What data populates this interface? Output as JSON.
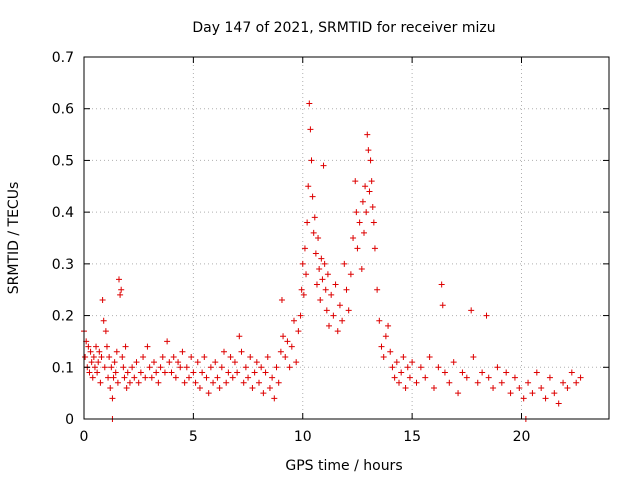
{
  "chart_data": {
    "type": "scatter",
    "title": "Day 147 of 2021, SRMTID for receiver mizu",
    "xlabel": "GPS time / hours",
    "ylabel": "SRMTID / TECUs",
    "xlim": [
      0,
      24
    ],
    "ylim": [
      0,
      0.7
    ],
    "xticks": [
      0,
      5,
      10,
      15,
      20
    ],
    "xtick_labels": [
      "0",
      "5",
      "10",
      "15",
      "20"
    ],
    "yticks": [
      0,
      0.1,
      0.2,
      0.3,
      0.4,
      0.5,
      0.6,
      0.7
    ],
    "ytick_labels": [
      "0",
      "0.1",
      "0.2",
      "0.3",
      "0.4",
      "0.5",
      "0.6",
      "0.7"
    ],
    "grid": true,
    "marker": "+",
    "series": [
      {
        "name": "SRMTID",
        "color": "#dd0000",
        "points": [
          [
            0.0,
            0.17
          ],
          [
            0.05,
            0.12
          ],
          [
            0.1,
            0.15
          ],
          [
            0.15,
            0.1
          ],
          [
            0.2,
            0.14
          ],
          [
            0.25,
            0.09
          ],
          [
            0.3,
            0.13
          ],
          [
            0.35,
            0.11
          ],
          [
            0.4,
            0.08
          ],
          [
            0.45,
            0.12
          ],
          [
            0.5,
            0.1
          ],
          [
            0.55,
            0.14
          ],
          [
            0.6,
            0.09
          ],
          [
            0.65,
            0.11
          ],
          [
            0.7,
            0.13
          ],
          [
            0.75,
            0.07
          ],
          [
            0.8,
            0.12
          ],
          [
            0.85,
            0.23
          ],
          [
            0.9,
            0.19
          ],
          [
            0.95,
            0.1
          ],
          [
            1.0,
            0.17
          ],
          [
            1.05,
            0.14
          ],
          [
            1.1,
            0.08
          ],
          [
            1.15,
            0.12
          ],
          [
            1.2,
            0.06
          ],
          [
            1.25,
            0.1
          ],
          [
            1.3,
            0.04
          ],
          [
            1.35,
            0.08
          ],
          [
            1.4,
            0.11
          ],
          [
            1.45,
            0.09
          ],
          [
            1.5,
            0.13
          ],
          [
            1.55,
            0.07
          ],
          [
            1.6,
            0.27
          ],
          [
            1.65,
            0.24
          ],
          [
            1.7,
            0.25
          ],
          [
            1.75,
            0.12
          ],
          [
            1.8,
            0.1
          ],
          [
            1.85,
            0.08
          ],
          [
            1.9,
            0.14
          ],
          [
            1.95,
            0.06
          ],
          [
            2.0,
            0.09
          ],
          [
            2.1,
            0.07
          ],
          [
            2.2,
            0.1
          ],
          [
            2.3,
            0.08
          ],
          [
            2.4,
            0.11
          ],
          [
            2.5,
            0.07
          ],
          [
            2.6,
            0.09
          ],
          [
            2.7,
            0.12
          ],
          [
            2.8,
            0.08
          ],
          [
            2.9,
            0.14
          ],
          [
            3.0,
            0.1
          ],
          [
            3.1,
            0.08
          ],
          [
            3.2,
            0.11
          ],
          [
            3.3,
            0.09
          ],
          [
            3.4,
            0.07
          ],
          [
            3.5,
            0.1
          ],
          [
            3.6,
            0.12
          ],
          [
            3.7,
            0.09
          ],
          [
            3.8,
            0.15
          ],
          [
            3.9,
            0.11
          ],
          [
            4.0,
            0.09
          ],
          [
            4.1,
            0.12
          ],
          [
            4.2,
            0.08
          ],
          [
            4.3,
            0.11
          ],
          [
            4.4,
            0.1
          ],
          [
            4.5,
            0.13
          ],
          [
            4.6,
            0.07
          ],
          [
            4.7,
            0.1
          ],
          [
            4.8,
            0.08
          ],
          [
            4.9,
            0.12
          ],
          [
            5.0,
            0.09
          ],
          [
            5.1,
            0.07
          ],
          [
            5.2,
            0.11
          ],
          [
            5.3,
            0.06
          ],
          [
            5.4,
            0.09
          ],
          [
            5.5,
            0.12
          ],
          [
            5.6,
            0.08
          ],
          [
            5.7,
            0.05
          ],
          [
            5.8,
            0.1
          ],
          [
            5.9,
            0.07
          ],
          [
            6.0,
            0.11
          ],
          [
            6.1,
            0.08
          ],
          [
            6.2,
            0.06
          ],
          [
            6.3,
            0.1
          ],
          [
            6.4,
            0.13
          ],
          [
            6.5,
            0.07
          ],
          [
            6.6,
            0.09
          ],
          [
            6.7,
            0.12
          ],
          [
            6.8,
            0.08
          ],
          [
            6.9,
            0.11
          ],
          [
            7.0,
            0.09
          ],
          [
            7.1,
            0.16
          ],
          [
            7.2,
            0.13
          ],
          [
            7.3,
            0.07
          ],
          [
            7.4,
            0.1
          ],
          [
            7.5,
            0.08
          ],
          [
            7.6,
            0.12
          ],
          [
            7.7,
            0.06
          ],
          [
            7.8,
            0.09
          ],
          [
            7.9,
            0.11
          ],
          [
            8.0,
            0.07
          ],
          [
            8.1,
            0.1
          ],
          [
            8.2,
            0.05
          ],
          [
            8.3,
            0.09
          ],
          [
            8.4,
            0.12
          ],
          [
            8.5,
            0.06
          ],
          [
            8.6,
            0.08
          ],
          [
            8.7,
            0.04
          ],
          [
            8.8,
            0.1
          ],
          [
            8.9,
            0.07
          ],
          [
            9.0,
            0.13
          ],
          [
            9.05,
            0.23
          ],
          [
            9.1,
            0.16
          ],
          [
            9.2,
            0.12
          ],
          [
            9.3,
            0.15
          ],
          [
            9.4,
            0.1
          ],
          [
            9.5,
            0.14
          ],
          [
            9.6,
            0.19
          ],
          [
            9.7,
            0.11
          ],
          [
            9.8,
            0.17
          ],
          [
            9.9,
            0.2
          ],
          [
            9.95,
            0.25
          ],
          [
            10.0,
            0.3
          ],
          [
            10.05,
            0.24
          ],
          [
            10.1,
            0.33
          ],
          [
            10.15,
            0.28
          ],
          [
            10.2,
            0.38
          ],
          [
            10.25,
            0.45
          ],
          [
            10.3,
            0.61
          ],
          [
            10.35,
            0.56
          ],
          [
            10.4,
            0.5
          ],
          [
            10.45,
            0.43
          ],
          [
            10.5,
            0.36
          ],
          [
            10.55,
            0.39
          ],
          [
            10.6,
            0.32
          ],
          [
            10.65,
            0.26
          ],
          [
            10.7,
            0.35
          ],
          [
            10.75,
            0.29
          ],
          [
            10.8,
            0.23
          ],
          [
            10.85,
            0.31
          ],
          [
            10.9,
            0.27
          ],
          [
            10.95,
            0.49
          ],
          [
            11.0,
            0.3
          ],
          [
            11.05,
            0.25
          ],
          [
            11.1,
            0.21
          ],
          [
            11.15,
            0.28
          ],
          [
            11.2,
            0.18
          ],
          [
            11.3,
            0.24
          ],
          [
            11.4,
            0.2
          ],
          [
            11.5,
            0.26
          ],
          [
            11.6,
            0.17
          ],
          [
            11.7,
            0.22
          ],
          [
            11.8,
            0.19
          ],
          [
            11.9,
            0.3
          ],
          [
            12.0,
            0.25
          ],
          [
            12.1,
            0.21
          ],
          [
            12.2,
            0.28
          ],
          [
            12.3,
            0.35
          ],
          [
            12.4,
            0.46
          ],
          [
            12.45,
            0.4
          ],
          [
            12.5,
            0.33
          ],
          [
            12.6,
            0.38
          ],
          [
            12.7,
            0.29
          ],
          [
            12.75,
            0.42
          ],
          [
            12.8,
            0.36
          ],
          [
            12.85,
            0.45
          ],
          [
            12.9,
            0.4
          ],
          [
            12.95,
            0.55
          ],
          [
            13.0,
            0.52
          ],
          [
            13.05,
            0.44
          ],
          [
            13.1,
            0.5
          ],
          [
            13.15,
            0.46
          ],
          [
            13.2,
            0.41
          ],
          [
            13.25,
            0.38
          ],
          [
            13.3,
            0.33
          ],
          [
            13.4,
            0.25
          ],
          [
            13.5,
            0.19
          ],
          [
            13.6,
            0.14
          ],
          [
            13.7,
            0.12
          ],
          [
            13.8,
            0.16
          ],
          [
            13.9,
            0.18
          ],
          [
            14.0,
            0.13
          ],
          [
            14.1,
            0.1
          ],
          [
            14.2,
            0.08
          ],
          [
            14.3,
            0.11
          ],
          [
            14.4,
            0.07
          ],
          [
            14.5,
            0.09
          ],
          [
            14.6,
            0.12
          ],
          [
            14.7,
            0.06
          ],
          [
            14.8,
            0.1
          ],
          [
            14.9,
            0.08
          ],
          [
            15.0,
            0.11
          ],
          [
            15.2,
            0.07
          ],
          [
            15.4,
            0.1
          ],
          [
            15.6,
            0.08
          ],
          [
            15.8,
            0.12
          ],
          [
            16.0,
            0.06
          ],
          [
            16.2,
            0.1
          ],
          [
            16.35,
            0.26
          ],
          [
            16.4,
            0.22
          ],
          [
            16.5,
            0.09
          ],
          [
            16.7,
            0.07
          ],
          [
            16.9,
            0.11
          ],
          [
            17.1,
            0.05
          ],
          [
            17.3,
            0.09
          ],
          [
            17.5,
            0.08
          ],
          [
            17.7,
            0.21
          ],
          [
            17.8,
            0.12
          ],
          [
            18.0,
            0.07
          ],
          [
            18.2,
            0.09
          ],
          [
            18.4,
            0.2
          ],
          [
            18.5,
            0.08
          ],
          [
            18.7,
            0.06
          ],
          [
            18.9,
            0.1
          ],
          [
            19.1,
            0.07
          ],
          [
            19.3,
            0.09
          ],
          [
            19.5,
            0.05
          ],
          [
            19.7,
            0.08
          ],
          [
            19.9,
            0.06
          ],
          [
            20.1,
            0.04
          ],
          [
            20.3,
            0.07
          ],
          [
            20.5,
            0.05
          ],
          [
            20.7,
            0.09
          ],
          [
            20.9,
            0.06
          ],
          [
            21.1,
            0.04
          ],
          [
            21.3,
            0.08
          ],
          [
            21.5,
            0.05
          ],
          [
            21.7,
            0.03
          ],
          [
            21.9,
            0.07
          ],
          [
            22.1,
            0.06
          ],
          [
            22.3,
            0.09
          ],
          [
            22.5,
            0.07
          ],
          [
            22.7,
            0.08
          ],
          [
            1.3,
            0.0
          ],
          [
            20.2,
            0.0
          ]
        ]
      }
    ]
  }
}
